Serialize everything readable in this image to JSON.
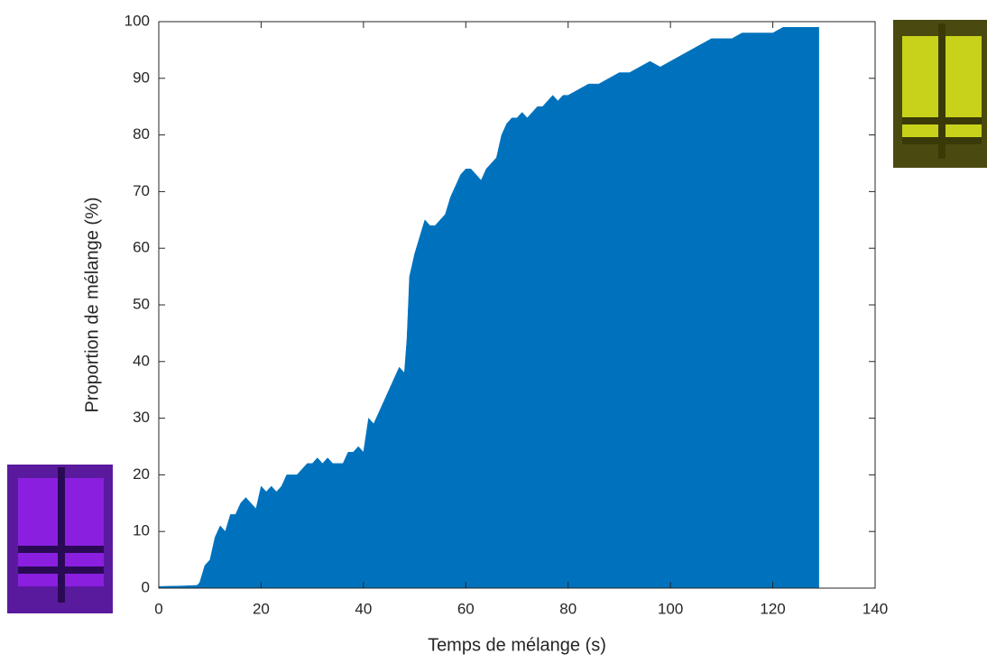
{
  "chart_data": {
    "type": "area",
    "xlabel": "Temps de mélange (s)",
    "ylabel": "Proportion de mélange (%)",
    "x": [
      0,
      5,
      7.5,
      8,
      9,
      10,
      11,
      12,
      13,
      14,
      15,
      16,
      17,
      18,
      19,
      20,
      21,
      22,
      23,
      24,
      25,
      26,
      27,
      28,
      29,
      30,
      31,
      32,
      33,
      34,
      35,
      36,
      37,
      38,
      39,
      40,
      41,
      42,
      43,
      44,
      45,
      46,
      47,
      48,
      48.5,
      49,
      50,
      51,
      52,
      53,
      54,
      55,
      56,
      57,
      58,
      59,
      60,
      61,
      62,
      63,
      64,
      65,
      66,
      67,
      68,
      69,
      70,
      71,
      72,
      73,
      74,
      75,
      76,
      77,
      78,
      79,
      80,
      82,
      84,
      86,
      88,
      90,
      92,
      94,
      96,
      98,
      100,
      102,
      104,
      106,
      108,
      110,
      112,
      114,
      116,
      118,
      120,
      122,
      124,
      126,
      128,
      129
    ],
    "series": [
      {
        "color": "#0072bd",
        "values": [
          0.3,
          0.4,
          0.5,
          1,
          4,
          5,
          9,
          11,
          10,
          13,
          13,
          15,
          16,
          15,
          14,
          18,
          17,
          18,
          17,
          18,
          20,
          20,
          20,
          21,
          22,
          22,
          23,
          22,
          23,
          22,
          22,
          22,
          24,
          24,
          25,
          24,
          30,
          29,
          31,
          33,
          35,
          37,
          39,
          38,
          44,
          55,
          59,
          62,
          65,
          64,
          64,
          65,
          66,
          69,
          71,
          73,
          74,
          74,
          73,
          72,
          74,
          75,
          76,
          80,
          82,
          83,
          83,
          84,
          83,
          84,
          85,
          85,
          86,
          87,
          86,
          87,
          87,
          88,
          89,
          89,
          90,
          91,
          91,
          92,
          93,
          92,
          93,
          94,
          95,
          96,
          97,
          97,
          97,
          98,
          98,
          98,
          98,
          99,
          99,
          99,
          99,
          99
        ]
      }
    ],
    "xlim": [
      0,
      140
    ],
    "ylim": [
      0,
      100
    ],
    "xticks": [
      0,
      20,
      40,
      60,
      80,
      100,
      120,
      140
    ],
    "yticks": [
      0,
      10,
      20,
      30,
      40,
      50,
      60,
      70,
      80,
      90,
      100
    ]
  }
}
